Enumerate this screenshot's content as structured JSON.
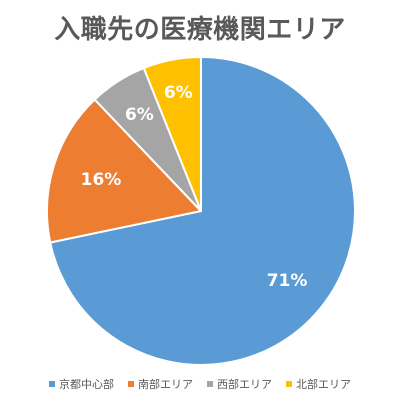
{
  "chart_data": {
    "type": "pie",
    "title": "入職先の医療機関エリア",
    "categories": [
      "京都中心部",
      "南部エリア",
      "西部エリア",
      "北部エリア"
    ],
    "values": [
      71,
      16,
      6,
      6
    ],
    "data_labels": [
      "71%",
      "16%",
      "6%",
      "6%"
    ],
    "colors": [
      "#5B9BD5",
      "#ED7D31",
      "#A5A5A5",
      "#FFC000"
    ],
    "legend_position": "bottom"
  }
}
